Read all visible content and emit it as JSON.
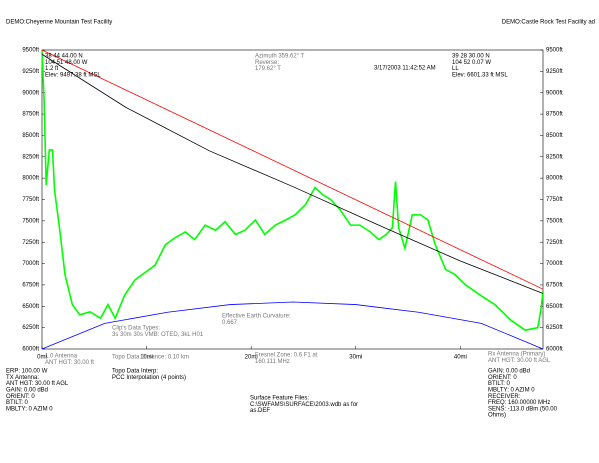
{
  "chart_data": {
    "type": "line",
    "header_left": "DEMO:Cheyenne Mountain Test Facility",
    "header_right": "DEMO:Castle Rock Test Facility ad",
    "xlim": [
      0,
      47.9
    ],
    "ylim": [
      6000,
      9500
    ],
    "xticks": [
      {
        "value": 0,
        "label": "0mi"
      },
      {
        "value": 10,
        "label": "10mi"
      },
      {
        "value": 20,
        "label": "20mi"
      },
      {
        "value": 30,
        "label": "30mi"
      },
      {
        "value": 40,
        "label": "40mi"
      }
    ],
    "yticks": [
      {
        "value": 6000,
        "label": "6000ft"
      },
      {
        "value": 6250,
        "label": "6250ft"
      },
      {
        "value": 6500,
        "label": "6500ft"
      },
      {
        "value": 6750,
        "label": "6750ft"
      },
      {
        "value": 7000,
        "label": "7000ft"
      },
      {
        "value": 7250,
        "label": "7250ft"
      },
      {
        "value": 7500,
        "label": "7500ft"
      },
      {
        "value": 7750,
        "label": "7750ft"
      },
      {
        "value": 8000,
        "label": "8000ft"
      },
      {
        "value": 8250,
        "label": "8250ft"
      },
      {
        "value": 8500,
        "label": "8500ft"
      },
      {
        "value": 8750,
        "label": "8750ft"
      },
      {
        "value": 9000,
        "label": "9000ft"
      },
      {
        "value": 9250,
        "label": "9250ft"
      },
      {
        "value": 9500,
        "label": "9500ft"
      }
    ],
    "series": [
      {
        "color": "#00ff00",
        "x": [
          0,
          0.2,
          0.4,
          0.7,
          1.0,
          1.2,
          1.7,
          2.2,
          2.9,
          3.6,
          4.6,
          5.6,
          6.3,
          7.0,
          7.9,
          8.9,
          9.9,
          10.8,
          11.8,
          12.7,
          13.7,
          14.6,
          15.6,
          16.6,
          17.5,
          18.5,
          19.4,
          20.4,
          21.3,
          22.3,
          23.3,
          24.2,
          25.2,
          26.1,
          26.8,
          27.6,
          28.5,
          29.5,
          30.4,
          31.4,
          32.2,
          32.9,
          33.5,
          33.8,
          34.1,
          34.7,
          35.4,
          36.2,
          36.9,
          37.6,
          38.6,
          39.5,
          40.5,
          41.9,
          43.3,
          44.8,
          46.2,
          47.4,
          47.7,
          47.9
        ],
        "values": [
          9500,
          8915,
          7920,
          8330,
          8330,
          7860,
          7390,
          6870,
          6520,
          6400,
          6435,
          6360,
          6520,
          6360,
          6630,
          6810,
          6900,
          6980,
          7220,
          7300,
          7370,
          7280,
          7450,
          7390,
          7490,
          7340,
          7390,
          7510,
          7340,
          7450,
          7510,
          7570,
          7690,
          7890,
          7810,
          7750,
          7630,
          7450,
          7450,
          7370,
          7280,
          7340,
          7420,
          7960,
          7420,
          7180,
          7570,
          7570,
          7510,
          7220,
          6930,
          6870,
          6750,
          6630,
          6520,
          6340,
          6220,
          6250,
          6460,
          6670
        ]
      },
      {
        "color": "#ff0000",
        "x": [
          0,
          47.9
        ],
        "values": [
          9500,
          6700
        ]
      },
      {
        "color": "#000000",
        "x": [
          0,
          8,
          16,
          24,
          32,
          40,
          47.9
        ],
        "values": [
          9450,
          8830,
          8320,
          7900,
          7460,
          7030,
          6650
        ]
      },
      {
        "color": "#0000ff",
        "x": [
          0,
          6,
          12,
          18,
          24,
          30,
          36,
          42,
          47.9
        ],
        "values": [
          6000,
          6300,
          6430,
          6520,
          6550,
          6520,
          6430,
          6300,
          6000
        ]
      }
    ]
  },
  "notes": {
    "tx_site": [
      "38 44 44.00 N",
      "104 51 48.00 W",
      "1.2 ft",
      "Elev: 9497.38 ft MSL"
    ],
    "azimuth": [
      "Azimuth 359.62° T",
      "Reverse:",
      "179.62° T"
    ],
    "date": [
      "3/17/2003 11:42:52 AM"
    ],
    "rx_site": [
      "39 28 30.00 N",
      "104 52 0.07 W",
      "LL",
      "Elev: 6601.33 ft MSL"
    ],
    "curvature": [
      "Effective Earth Curvature:",
      "0.667"
    ],
    "clip": [
      "Clip's Data Types:",
      "3s 30m 30s VMB: OTED, 3kL H01"
    ],
    "tx_ant_short": [
      "1.0 Antenna",
      "ANT HGT: 30.00 ft"
    ],
    "topo_dist": [
      "Topo Data Distance: 0.10 km"
    ],
    "fresnel": [
      "Fresnel Zone: 0.6 F1 at",
      "160.111 MHz"
    ],
    "rx_ant_short": [
      "Rx Antenna (Primary)",
      "ANT HGT: 30.00 ft AGL"
    ],
    "tx_block": [
      "ERP:    100.00 W",
      "TX Antenna:",
      "ANT HGT: 30.00 ft AGL",
      "GAIN:   0.00 dBd",
      "ORIENT: 0",
      "BTILT:  0",
      "MBLTY:  0 AZIM 0"
    ],
    "interp": [
      "Topo Data Interp:",
      "PCC Interpolation (4 points)"
    ],
    "surface": [
      "Surface Feature Files:",
      "C:\\SWFAMS\\SURFACE\\2003.wdb as for",
      "as.DEF"
    ],
    "rx_block": [
      "GAIN:   0.00 dBd",
      "ORIENT: 0",
      "BTILT:  0",
      "MBLTY:  0 AZIM 0",
      "RECEIVER:",
      "FREQ:   160.00000 MHz",
      "SENS:   -113.0 dBm (50.00",
      "Ohms)"
    ]
  }
}
